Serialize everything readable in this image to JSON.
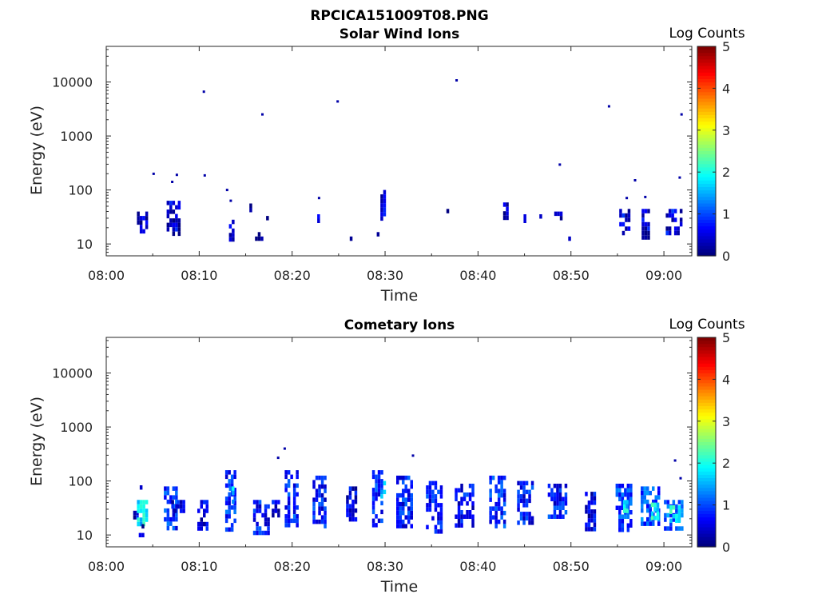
{
  "figure": {
    "title": "RPCICA151009T08.PNG"
  },
  "chart_data": [
    {
      "type": "heatmap",
      "title": "Solar Wind Ions",
      "xlabel": "Time",
      "ylabel": "Energy (eV)",
      "xticks": [
        "08:00",
        "08:10",
        "08:20",
        "08:30",
        "08:40",
        "08:50",
        "09:00"
      ],
      "yticks": [
        "10",
        "100",
        "1000",
        "10000"
      ],
      "xlim_minutes": [
        0,
        63
      ],
      "ylim_log10_eV": [
        0.78,
        4.66
      ],
      "yscale": "log",
      "colorbar": {
        "label": "Log Counts",
        "ticks": [
          "0",
          "1",
          "2",
          "3",
          "4",
          "5"
        ],
        "range": [
          0,
          5
        ],
        "colormap": "jet"
      },
      "pixel_blocks": [
        {
          "t": [
            3.3,
            4.3
          ],
          "e": [
            1.2,
            1.6
          ],
          "c": 0.3
        },
        {
          "t": [
            6.5,
            7.8
          ],
          "e": [
            1.2,
            1.8
          ],
          "c": 0.4
        },
        {
          "t": [
            10.4,
            10.6
          ],
          "e": [
            1.45,
            1.5
          ],
          "c": 0.3
        },
        {
          "t": [
            13.2,
            13.8
          ],
          "e": [
            1.1,
            1.45
          ],
          "c": 0.3
        },
        {
          "t": [
            15.4,
            15.6
          ],
          "e": [
            1.65,
            1.75
          ],
          "c": 0.2
        },
        {
          "t": [
            16.0,
            16.8
          ],
          "e": [
            1.1,
            1.22
          ],
          "c": 0.3
        },
        {
          "t": [
            17.2,
            17.4
          ],
          "e": [
            1.5,
            1.6
          ],
          "c": 0.2
        },
        {
          "t": [
            22.7,
            22.9
          ],
          "e": [
            1.45,
            1.55
          ],
          "c": 0.2
        },
        {
          "t": [
            26.2,
            26.4
          ],
          "e": [
            1.1,
            1.22
          ],
          "c": 0.2
        },
        {
          "t": [
            29.1,
            29.3
          ],
          "e": [
            1.1,
            1.22
          ],
          "c": 0.2
        },
        {
          "t": [
            29.5,
            29.9
          ],
          "e": [
            1.5,
            2.0
          ],
          "c": 0.4
        },
        {
          "t": [
            36.6,
            36.8
          ],
          "e": [
            1.55,
            1.65
          ],
          "c": 0.2
        },
        {
          "t": [
            42.7,
            43.1
          ],
          "e": [
            1.45,
            1.85
          ],
          "c": 0.2
        },
        {
          "t": [
            44.9,
            45.1
          ],
          "e": [
            1.45,
            1.55
          ],
          "c": 0.2
        },
        {
          "t": [
            46.6,
            46.8
          ],
          "e": [
            1.45,
            1.55
          ],
          "c": 0.2
        },
        {
          "t": [
            48.2,
            48.9
          ],
          "e": [
            1.45,
            1.6
          ],
          "c": 0.2
        },
        {
          "t": [
            49.7,
            49.9
          ],
          "e": [
            1.1,
            1.22
          ],
          "c": 0.2
        },
        {
          "t": [
            55.2,
            56.4
          ],
          "e": [
            1.2,
            1.65
          ],
          "c": 0.5
        },
        {
          "t": [
            57.6,
            58.4
          ],
          "e": [
            1.1,
            1.65
          ],
          "c": 0.4
        },
        {
          "t": [
            60.2,
            61.8
          ],
          "e": [
            1.2,
            1.65
          ],
          "c": 0.5
        }
      ],
      "scattered_points": [
        {
          "t": 5.1,
          "e": 2.3
        },
        {
          "t": 7.1,
          "e": 2.15
        },
        {
          "t": 7.6,
          "e": 2.28
        },
        {
          "t": 10.5,
          "e": 3.82
        },
        {
          "t": 10.6,
          "e": 2.27
        },
        {
          "t": 13.0,
          "e": 2.0
        },
        {
          "t": 13.4,
          "e": 1.8
        },
        {
          "t": 16.8,
          "e": 3.4
        },
        {
          "t": 22.9,
          "e": 1.85
        },
        {
          "t": 24.9,
          "e": 3.64
        },
        {
          "t": 37.7,
          "e": 4.03
        },
        {
          "t": 48.8,
          "e": 2.47
        },
        {
          "t": 54.1,
          "e": 3.55
        },
        {
          "t": 56.0,
          "e": 1.85
        },
        {
          "t": 56.9,
          "e": 2.18
        },
        {
          "t": 58.0,
          "e": 1.87
        },
        {
          "t": 61.7,
          "e": 2.23
        },
        {
          "t": 61.9,
          "e": 3.4
        }
      ]
    },
    {
      "type": "heatmap",
      "title": "Cometary Ions",
      "xlabel": "Time",
      "ylabel": "Energy (eV)",
      "xticks": [
        "08:00",
        "08:10",
        "08:20",
        "08:30",
        "08:40",
        "08:50",
        "09:00"
      ],
      "yticks": [
        "10",
        "100",
        "1000",
        "10000"
      ],
      "xlim_minutes": [
        0,
        63
      ],
      "ylim_log10_eV": [
        0.78,
        4.66
      ],
      "yscale": "log",
      "colorbar": {
        "label": "Log Counts",
        "ticks": [
          "0",
          "1",
          "2",
          "3",
          "4",
          "5"
        ],
        "range": [
          0,
          5
        ],
        "colormap": "jet"
      },
      "pixel_blocks": [
        {
          "t": [
            2.9,
            3.3
          ],
          "e": [
            1.35,
            1.45
          ],
          "c": 0.5
        },
        {
          "t": [
            3.3,
            4.5
          ],
          "e": [
            1.2,
            1.65
          ],
          "c": 1.8
        },
        {
          "t": [
            3.5,
            4.1
          ],
          "e": [
            1.0,
            1.2
          ],
          "c": 0.4
        },
        {
          "t": [
            3.6,
            3.8
          ],
          "e": [
            1.85,
            1.92
          ],
          "c": 0.3
        },
        {
          "t": [
            6.2,
            7.6
          ],
          "e": [
            1.1,
            1.9
          ],
          "c": 0.8
        },
        {
          "t": [
            7.0,
            8.4
          ],
          "e": [
            1.45,
            1.65
          ],
          "c": 0.5
        },
        {
          "t": [
            9.8,
            11.0
          ],
          "e": [
            1.1,
            1.65
          ],
          "c": 0.5
        },
        {
          "t": [
            12.8,
            13.8
          ],
          "e": [
            1.1,
            2.2
          ],
          "c": 0.8
        },
        {
          "t": [
            13.2,
            13.6
          ],
          "e": [
            1.5,
            1.9
          ],
          "c": 1.5
        },
        {
          "t": [
            15.8,
            17.5
          ],
          "e": [
            1.0,
            1.65
          ],
          "c": 0.7
        },
        {
          "t": [
            17.8,
            18.5
          ],
          "e": [
            1.35,
            1.65
          ],
          "c": 0.5
        },
        {
          "t": [
            19.2,
            20.5
          ],
          "e": [
            1.2,
            2.2
          ],
          "c": 0.8
        },
        {
          "t": [
            22.2,
            23.5
          ],
          "e": [
            1.2,
            2.1
          ],
          "c": 0.7
        },
        {
          "t": [
            25.8,
            27.0
          ],
          "e": [
            1.25,
            1.9
          ],
          "c": 0.5
        },
        {
          "t": [
            28.6,
            29.8
          ],
          "e": [
            1.2,
            2.2
          ],
          "c": 0.8
        },
        {
          "t": [
            29.5,
            30.0
          ],
          "e": [
            1.7,
            2.0
          ],
          "c": 1.4
        },
        {
          "t": [
            31.2,
            33.0
          ],
          "e": [
            1.2,
            2.1
          ],
          "c": 0.7
        },
        {
          "t": [
            34.4,
            36.0
          ],
          "e": [
            1.1,
            2.0
          ],
          "c": 0.7
        },
        {
          "t": [
            37.5,
            39.5
          ],
          "e": [
            1.2,
            1.95
          ],
          "c": 0.6
        },
        {
          "t": [
            41.2,
            43.0
          ],
          "e": [
            1.2,
            2.1
          ],
          "c": 0.8
        },
        {
          "t": [
            44.2,
            46.0
          ],
          "e": [
            1.2,
            2.0
          ],
          "c": 0.7
        },
        {
          "t": [
            47.5,
            49.5
          ],
          "e": [
            1.3,
            1.95
          ],
          "c": 0.7
        },
        {
          "t": [
            51.5,
            52.6
          ],
          "e": [
            1.1,
            1.8
          ],
          "c": 0.5
        },
        {
          "t": [
            54.8,
            56.4
          ],
          "e": [
            1.1,
            1.95
          ],
          "c": 0.9
        },
        {
          "t": [
            55.6,
            56.2
          ],
          "e": [
            1.45,
            1.65
          ],
          "c": 1.8
        },
        {
          "t": [
            57.5,
            59.4
          ],
          "e": [
            1.2,
            1.9
          ],
          "c": 1.0
        },
        {
          "t": [
            58.6,
            59.4
          ],
          "e": [
            1.3,
            1.6
          ],
          "c": 1.9
        },
        {
          "t": [
            60.0,
            62.0
          ],
          "e": [
            1.1,
            1.65
          ],
          "c": 1.1
        },
        {
          "t": [
            60.6,
            61.6
          ],
          "e": [
            1.3,
            1.55
          ],
          "c": 2.0
        }
      ],
      "scattered_points": [
        {
          "t": 19.2,
          "e": 2.6
        },
        {
          "t": 18.5,
          "e": 2.43
        },
        {
          "t": 33.0,
          "e": 2.47
        },
        {
          "t": 61.2,
          "e": 2.38
        },
        {
          "t": 61.8,
          "e": 2.05
        }
      ]
    }
  ]
}
